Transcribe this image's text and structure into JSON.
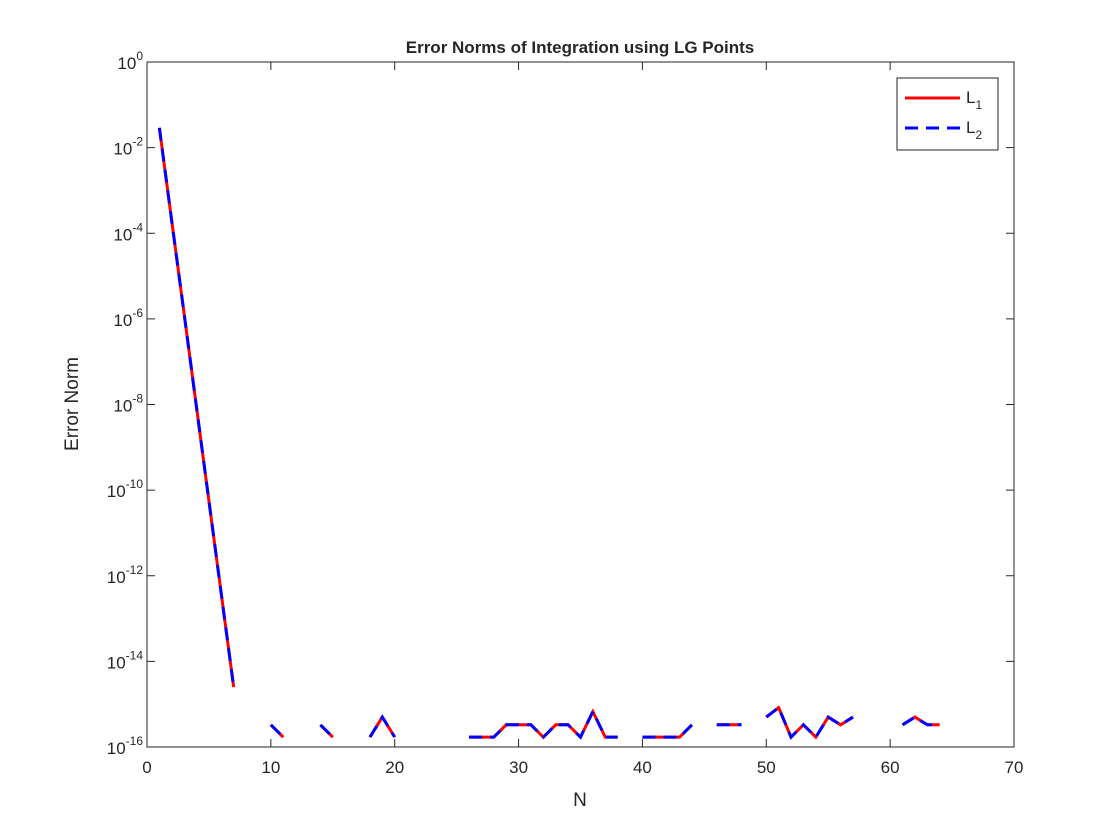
{
  "chart_data": {
    "type": "line",
    "title": "Error Norms of Integration using LG Points",
    "xlabel": "N",
    "ylabel": "Error Norm",
    "log_y": true,
    "legend": "upper right",
    "x": [
      1,
      2,
      3,
      4,
      5,
      6,
      7,
      8,
      9,
      10,
      11,
      12,
      13,
      14,
      15,
      16,
      17,
      18,
      19,
      20,
      21,
      22,
      23,
      24,
      25,
      26,
      27,
      28,
      29,
      30,
      31,
      32,
      33,
      34,
      35,
      36,
      37,
      38,
      39,
      40,
      41,
      42,
      43,
      44,
      45,
      46,
      47,
      48,
      49,
      50,
      51,
      52,
      53,
      54,
      55,
      56,
      57,
      58,
      59,
      60,
      61,
      62,
      63,
      64
    ],
    "series": [
      {
        "name": "L",
        "subscript": "1",
        "color": "#ff0000",
        "style": "solid",
        "values": [
          0.029,
          0.00019,
          1.3e-06,
          8.5e-09,
          5.6e-11,
          3.7e-13,
          2.5e-15,
          null,
          null,
          3.3e-16,
          1.7e-16,
          null,
          null,
          3.3e-16,
          1.7e-16,
          null,
          null,
          1.7e-16,
          5e-16,
          1.7e-16,
          null,
          null,
          null,
          null,
          null,
          1.7e-16,
          1.7e-16,
          1.7e-16,
          3.3e-16,
          3.3e-16,
          3.3e-16,
          1.7e-16,
          3.3e-16,
          3.3e-16,
          1.7e-16,
          6.7e-16,
          1.7e-16,
          1.7e-16,
          null,
          1.7e-16,
          1.7e-16,
          1.7e-16,
          1.7e-16,
          3.3e-16,
          null,
          3.3e-16,
          3.3e-16,
          3.3e-16,
          null,
          5e-16,
          8.3e-16,
          1.7e-16,
          3.3e-16,
          1.7e-16,
          5e-16,
          3.3e-16,
          5e-16,
          null,
          null,
          null,
          3.3e-16,
          5e-16,
          3.3e-16,
          3.3e-16
        ]
      },
      {
        "name": "L",
        "subscript": "2",
        "color": "#0000ff",
        "style": "dashed",
        "values": [
          0.029,
          0.00019,
          1.3e-06,
          8.5e-09,
          5.6e-11,
          3.7e-13,
          2.5e-15,
          null,
          null,
          3.3e-16,
          1.7e-16,
          null,
          null,
          3.3e-16,
          1.7e-16,
          null,
          null,
          1.7e-16,
          5e-16,
          1.7e-16,
          null,
          null,
          null,
          null,
          null,
          1.7e-16,
          1.7e-16,
          1.7e-16,
          3.3e-16,
          3.3e-16,
          3.3e-16,
          1.7e-16,
          3.3e-16,
          3.3e-16,
          1.7e-16,
          6.7e-16,
          1.7e-16,
          1.7e-16,
          null,
          1.7e-16,
          1.7e-16,
          1.7e-16,
          1.7e-16,
          3.3e-16,
          null,
          3.3e-16,
          3.3e-16,
          3.3e-16,
          null,
          5e-16,
          8.3e-16,
          1.7e-16,
          3.3e-16,
          1.7e-16,
          5e-16,
          3.3e-16,
          5e-16,
          null,
          null,
          null,
          3.3e-16,
          5e-16,
          3.3e-16,
          3.3e-16
        ]
      }
    ],
    "xlim": [
      0,
      70
    ],
    "xticks": [
      0,
      10,
      20,
      30,
      40,
      50,
      60,
      70
    ],
    "ylim": [
      1e-16,
      1
    ],
    "yticks": [
      {
        "value": 1e-16,
        "label": "10",
        "exponent": "-16"
      },
      {
        "value": 1e-14,
        "label": "10",
        "exponent": "-14"
      },
      {
        "value": 1e-12,
        "label": "10",
        "exponent": "-12"
      },
      {
        "value": 1e-10,
        "label": "10",
        "exponent": "-10"
      },
      {
        "value": 1e-08,
        "label": "10",
        "exponent": "-8"
      },
      {
        "value": 1e-06,
        "label": "10",
        "exponent": "-6"
      },
      {
        "value": 0.0001,
        "label": "10",
        "exponent": "-4"
      },
      {
        "value": 0.01,
        "label": "10",
        "exponent": "-2"
      },
      {
        "value": 1,
        "label": "10",
        "exponent": "0"
      }
    ]
  }
}
